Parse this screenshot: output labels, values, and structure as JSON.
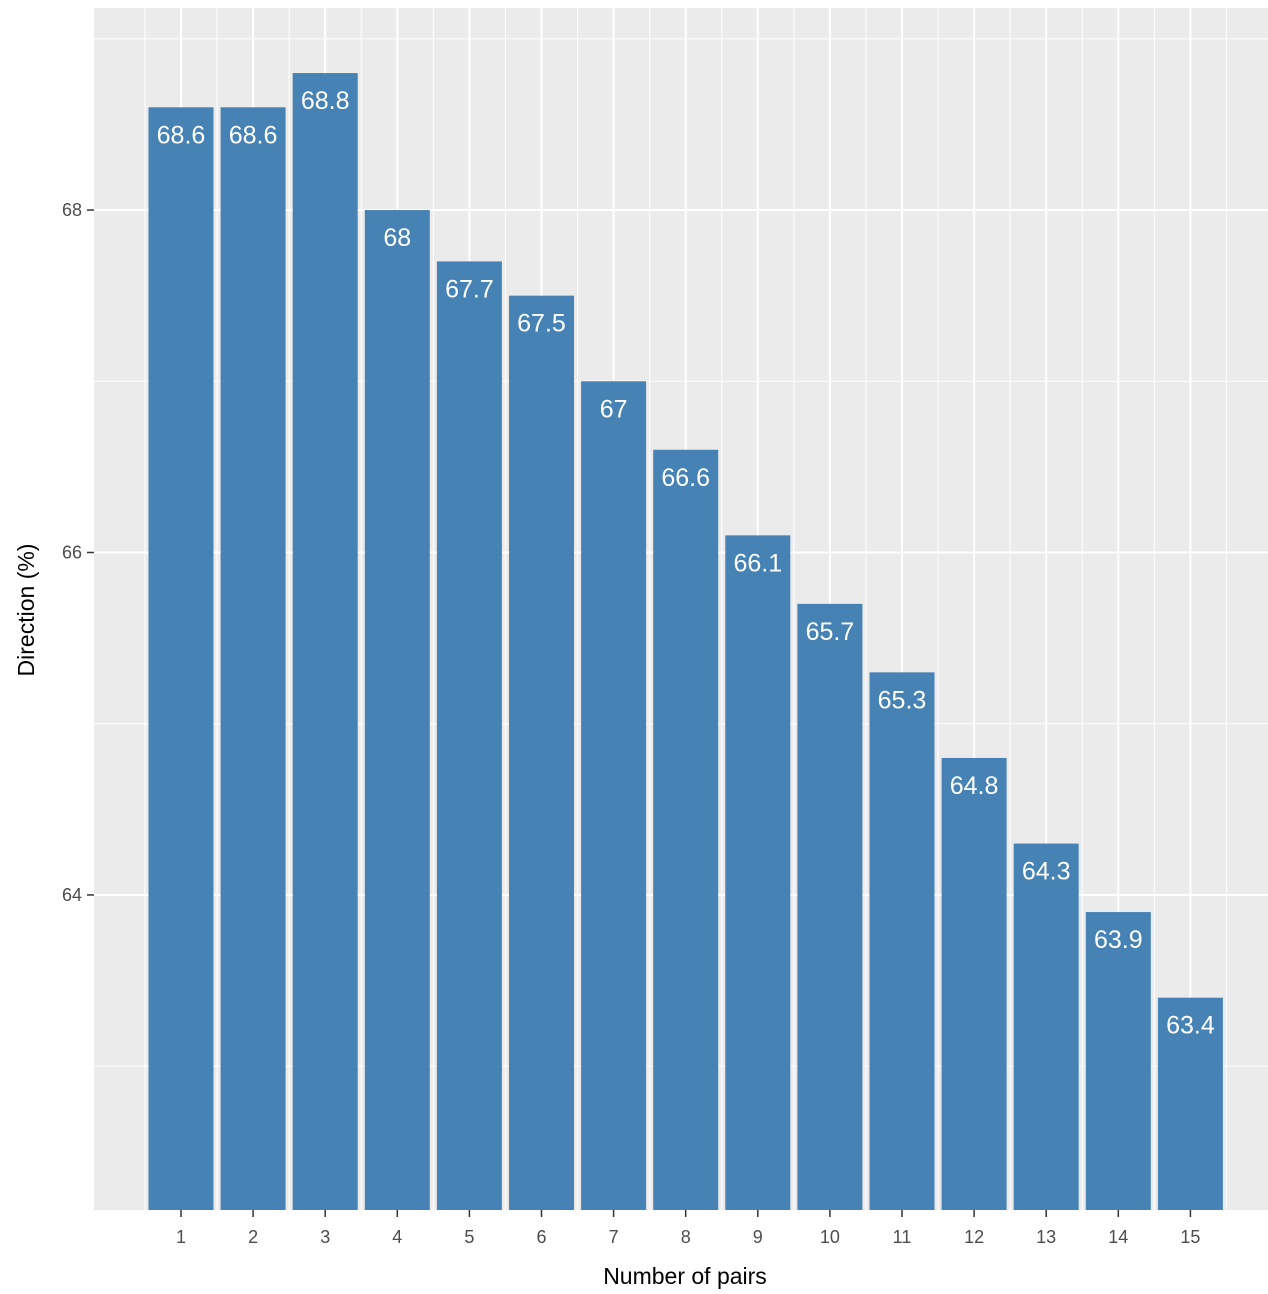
{
  "chart_data": {
    "type": "bar",
    "categories": [
      "1",
      "2",
      "3",
      "4",
      "5",
      "6",
      "7",
      "8",
      "9",
      "10",
      "11",
      "12",
      "13",
      "14",
      "15"
    ],
    "values": [
      68.6,
      68.6,
      68.8,
      68,
      67.7,
      67.5,
      67,
      66.6,
      66.1,
      65.7,
      65.3,
      64.8,
      64.3,
      63.9,
      63.4
    ],
    "value_labels": [
      "68.6",
      "68.6",
      "68.8",
      "68",
      "67.7",
      "67.5",
      "67",
      "66.6",
      "66.1",
      "65.7",
      "65.3",
      "64.8",
      "64.3",
      "63.9",
      "63.4"
    ],
    "xlabel": "Number of pairs",
    "ylabel": "Direction (%)",
    "y_ticks": [
      64,
      66,
      68
    ],
    "y_tick_labels": [
      "64",
      "66",
      "68"
    ],
    "ylim": [
      62.16,
      69.18
    ],
    "grid": true,
    "colors": {
      "bar": "#4682b4",
      "panel_background": "#ebebeb",
      "grid_line": "#ffffff",
      "label_text": "#ffffff",
      "tick_text": "#4d4d4d"
    }
  }
}
